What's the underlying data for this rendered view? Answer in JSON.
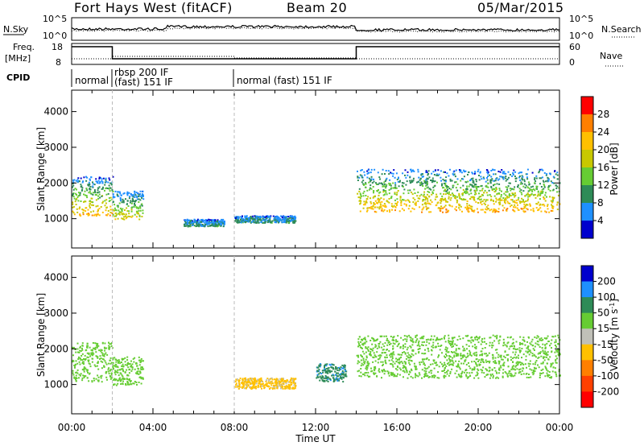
{
  "header": {
    "station": "Fort Hays West (fitACF)",
    "beam": "Beam 20",
    "date": "05/Mar/2015"
  },
  "top_panel": {
    "left_label": "N.Sky",
    "right_label": "N.Search",
    "left_ticks": [
      "10^5",
      "10^0"
    ],
    "right_ticks": [
      "10^5",
      "10^0"
    ]
  },
  "freq_panel": {
    "left_label_1": "Freq.",
    "left_label_2": "[MHz]",
    "left_ticks": [
      "18",
      "8"
    ],
    "right_label": "Nave",
    "right_ticks": [
      "60",
      "0"
    ],
    "freq_steps": [
      {
        "start_h": 0,
        "end_h": 2,
        "level": "high"
      },
      {
        "start_h": 2,
        "end_h": 14,
        "level": "low"
      },
      {
        "start_h": 14,
        "end_h": 24,
        "level": "high"
      }
    ]
  },
  "cpid": {
    "label": "CPID",
    "segments": [
      {
        "start_h": 0,
        "text1": "normal",
        "text2": ""
      },
      {
        "start_h": 2,
        "text1": "rbsp 200 IF",
        "text2": "(fast) 151 IF"
      },
      {
        "start_h": 8,
        "text1": "normal (fast) 151 IF",
        "text2": ""
      }
    ]
  },
  "power_panel": {
    "ylabel": "Slant Range [km]",
    "cbar_label": "Power [dB]",
    "cbar_ticks": [
      "28",
      "24",
      "20",
      "16",
      "12",
      "8",
      "4"
    ],
    "cbar_colors": [
      "#ff0000",
      "#ff7f00",
      "#ffc000",
      "#c8c800",
      "#66cc33",
      "#2e8b57",
      "#1e90ff",
      "#0000cd"
    ]
  },
  "velocity_panel": {
    "ylabel": "Slant Range [km]",
    "cbar_label": "Velocity [m s^-1]",
    "cbar_ticks": [
      "200",
      "100",
      "50",
      "15",
      "-15",
      "-50",
      "-100",
      "-200"
    ],
    "cbar_colors": [
      "#0000cd",
      "#1e90ff",
      "#2e8b57",
      "#66cc33",
      "#c0c0b8",
      "#ffc000",
      "#ff7f00",
      "#ff4000",
      "#ff0000"
    ]
  },
  "xaxis": {
    "label": "Time UT",
    "ticks": [
      "00:00",
      "04:00",
      "08:00",
      "12:00",
      "16:00",
      "20:00",
      "00:00"
    ]
  },
  "yaxis_ticks": [
    "4000",
    "3000",
    "2000",
    "1000"
  ],
  "chart_data": [
    {
      "type": "heatmap",
      "title": "Power",
      "xlabel": "Time UT",
      "ylabel": "Slant Range [km]",
      "xlim_hours": [
        0,
        24
      ],
      "ylim": [
        180,
        4600
      ],
      "colorbar": {
        "label": "Power [dB]",
        "range": [
          0,
          30
        ]
      },
      "echo_regions": [
        {
          "start_h": 0.0,
          "end_h": 2.0,
          "range_low": 1100,
          "range_high": 2200,
          "power": 20
        },
        {
          "start_h": 2.0,
          "end_h": 3.5,
          "range_low": 1000,
          "range_high": 1800,
          "power": 16
        },
        {
          "start_h": 5.5,
          "end_h": 7.5,
          "range_low": 800,
          "range_high": 1000,
          "power": 6
        },
        {
          "start_h": 8.0,
          "end_h": 11.0,
          "range_low": 900,
          "range_high": 1100,
          "power": 6
        },
        {
          "start_h": 14.0,
          "end_h": 24.0,
          "range_low": 1200,
          "range_high": 2400,
          "power": 20
        }
      ]
    },
    {
      "type": "heatmap",
      "title": "Velocity",
      "xlabel": "Time UT",
      "ylabel": "Slant Range [km]",
      "xlim_hours": [
        0,
        24
      ],
      "ylim": [
        180,
        4600
      ],
      "colorbar": {
        "label": "Velocity [m s^-1]",
        "range": [
          -200,
          200
        ]
      },
      "echo_regions": [
        {
          "start_h": 0.0,
          "end_h": 2.0,
          "range_low": 1100,
          "range_high": 2200,
          "velocity": 0
        },
        {
          "start_h": 2.0,
          "end_h": 3.5,
          "range_low": 1000,
          "range_high": 1800,
          "velocity": 0
        },
        {
          "start_h": 8.0,
          "end_h": 11.0,
          "range_low": 900,
          "range_high": 1200,
          "velocity": -60
        },
        {
          "start_h": 12.0,
          "end_h": 13.5,
          "range_low": 1100,
          "range_high": 1600,
          "velocity": 40
        },
        {
          "start_h": 14.0,
          "end_h": 24.0,
          "range_low": 1200,
          "range_high": 2400,
          "velocity": 0
        }
      ]
    }
  ]
}
